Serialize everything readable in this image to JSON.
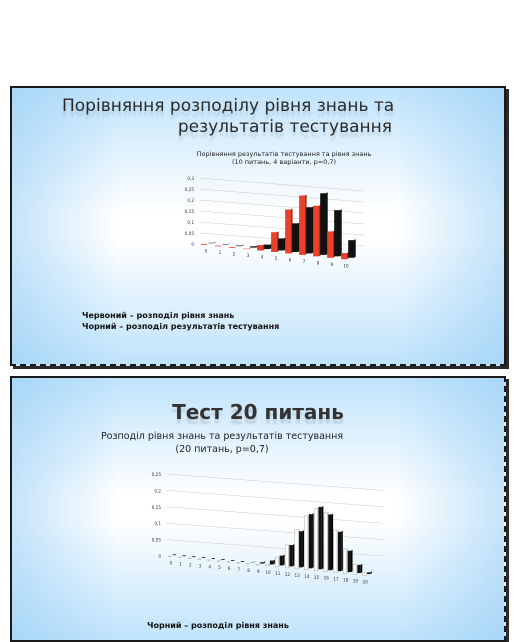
{
  "slides": [
    {
      "title_line1": "Порівняння розподілу рівня знань та",
      "title_line2": "результатів тестування",
      "legend": [
        "Червоний – розподіл рівня знань",
        "Чорний – розподіл результатів тестування"
      ]
    },
    {
      "title": "Тест 20 питань",
      "subtitle": "Розподіл рівня знань та результатів тестування (20 питань, p=0,7)",
      "legend": [
        "Чорний – розподіл рівня знань"
      ]
    }
  ],
  "chart_data": [
    {
      "type": "bar",
      "title": "Порівняння результатів тестування та рівня знань (10 питань, 4 варіанти, p=0,7)",
      "categories": [
        "0",
        "1",
        "2",
        "3",
        "4",
        "5",
        "6",
        "7",
        "8",
        "9",
        "10"
      ],
      "ylim": [
        0,
        0.3
      ],
      "yticks": [
        "0",
        "0,05",
        "0,1",
        "0,15",
        "0,2",
        "0,25",
        "0,3"
      ],
      "grid": true,
      "series": [
        {
          "color": "#e8402a",
          "values": [
            0,
            0,
            0,
            0.002,
            0.025,
            0.09,
            0.2,
            0.27,
            0.23,
            0.12,
            0.028
          ]
        },
        {
          "color": "#111111",
          "values": [
            0.002,
            0.002,
            0.003,
            0.006,
            0.02,
            0.055,
            0.13,
            0.21,
            0.28,
            0.21,
            0.08
          ]
        }
      ]
    },
    {
      "type": "bar",
      "categories": [
        "0",
        "1",
        "2",
        "3",
        "4",
        "5",
        "6",
        "7",
        "8",
        "9",
        "10",
        "11",
        "12",
        "13",
        "14",
        "15",
        "16",
        "17",
        "18",
        "19",
        "20"
      ],
      "ylim": [
        0,
        0.25
      ],
      "yticks": [
        "0",
        "0,05",
        "0,1",
        "0,15",
        "0,2",
        "0,25"
      ],
      "grid": true,
      "series": [
        {
          "color": "#ffffff",
          "values": [
            0,
            0,
            0,
            0,
            0,
            0,
            0,
            0,
            0,
            0.002,
            0.006,
            0.03,
            0.07,
            0.12,
            0.165,
            0.19,
            0.18,
            0.13,
            0.075,
            0.03,
            0.008
          ]
        },
        {
          "color": "#111111",
          "values": [
            0,
            0,
            0,
            0,
            0,
            0,
            0,
            0,
            0.001,
            0.004,
            0.012,
            0.03,
            0.065,
            0.11,
            0.165,
            0.19,
            0.17,
            0.12,
            0.065,
            0.025,
            0.005
          ]
        }
      ]
    }
  ]
}
